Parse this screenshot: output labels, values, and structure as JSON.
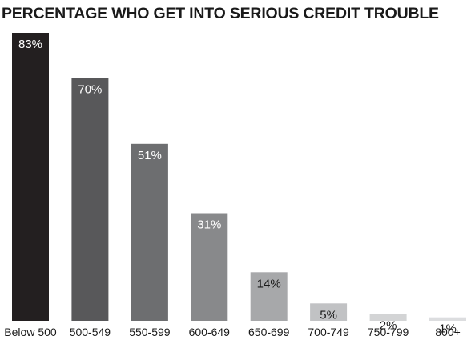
{
  "chart_data": {
    "type": "bar",
    "title": "PERCENTAGE WHO GET INTO SERIOUS CREDIT TROUBLE",
    "categories": [
      "Below 500",
      "500-549",
      "550-599",
      "600-649",
      "650-699",
      "700-749",
      "750-799",
      "800+"
    ],
    "values": [
      83,
      70,
      51,
      31,
      14,
      5,
      2,
      1
    ],
    "data_labels": [
      "83%",
      "70%",
      "51%",
      "31%",
      "14%",
      "5%",
      "2%",
      "1%"
    ],
    "bar_colors": [
      "#231f20",
      "#58585a",
      "#6d6e70",
      "#88898b",
      "#a7a8aa",
      "#c1c2c4",
      "#d3d4d5",
      "#dcdddf"
    ],
    "label_colors": [
      "#ffffff",
      "#ffffff",
      "#ffffff",
      "#ffffff",
      "#1a1a1a",
      "#1a1a1a",
      "#1a1a1a",
      "#1a1a1a"
    ],
    "ylim": [
      0,
      83
    ],
    "xlabel": "",
    "ylabel": "",
    "grid": false,
    "legend": "none"
  }
}
